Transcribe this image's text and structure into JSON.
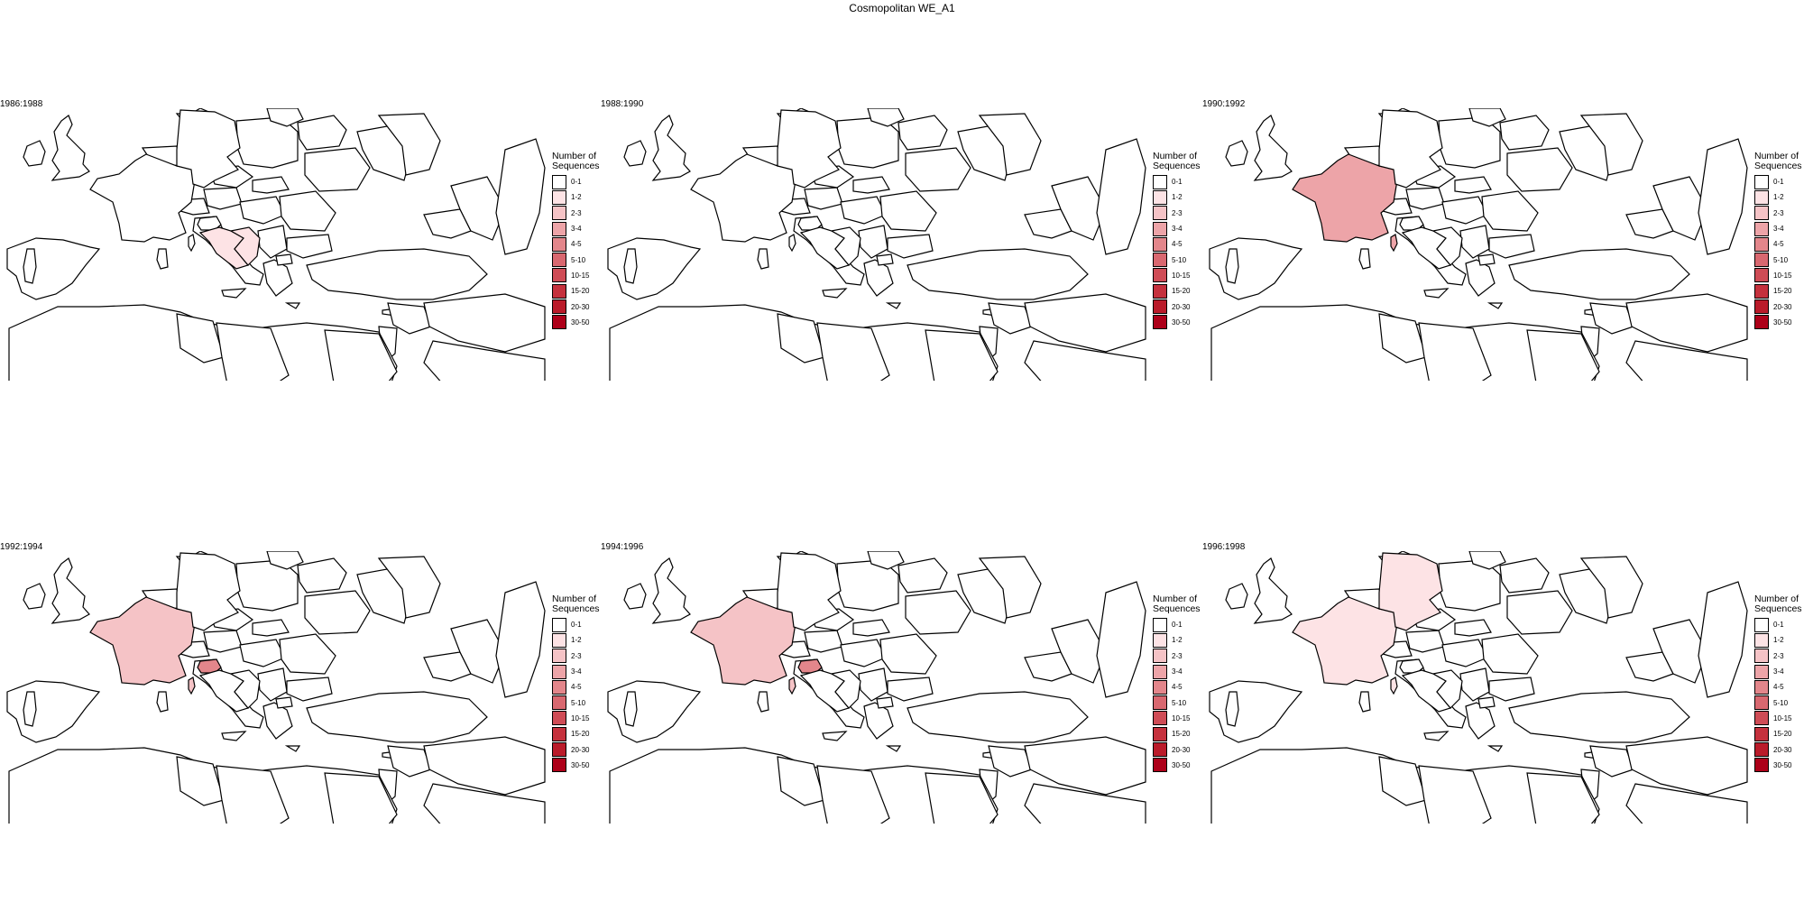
{
  "title": "Cosmopolitan WE_A1",
  "legend": {
    "title_line1": "Number of",
    "title_line2": "Sequences",
    "bins": [
      {
        "label": "0-1",
        "color": "#FFFFFF"
      },
      {
        "label": "1-2",
        "color": "#FDE3E5"
      },
      {
        "label": "2-3",
        "color": "#F5C3C6"
      },
      {
        "label": "3-4",
        "color": "#EDA4A8"
      },
      {
        "label": "4-5",
        "color": "#E3868B"
      },
      {
        "label": "5-10",
        "color": "#D96870"
      },
      {
        "label": "10-15",
        "color": "#CF4C56"
      },
      {
        "label": "15-20",
        "color": "#C5313D"
      },
      {
        "label": "20-30",
        "color": "#BA1B2A"
      },
      {
        "label": "30-50",
        "color": "#AD0019"
      }
    ]
  },
  "panels": [
    {
      "period": "1986:1988",
      "fills": {
        "croatia": "1-2",
        "bosnia": "1-2"
      }
    },
    {
      "period": "1988:1990",
      "fills": {}
    },
    {
      "period": "1990:1992",
      "fills": {
        "france": "3-4",
        "corsica": "3-4"
      }
    },
    {
      "period": "1992:1994",
      "fills": {
        "france": "2-3",
        "corsica": "2-3",
        "slovenia": "4-5"
      }
    },
    {
      "period": "1994:1996",
      "fills": {
        "france": "2-3",
        "corsica": "2-3",
        "slovenia": "4-5"
      }
    },
    {
      "period": "1996:1998",
      "fills": {
        "france": "1-2",
        "corsica": "1-2",
        "germany": "1-2"
      }
    }
  ]
}
